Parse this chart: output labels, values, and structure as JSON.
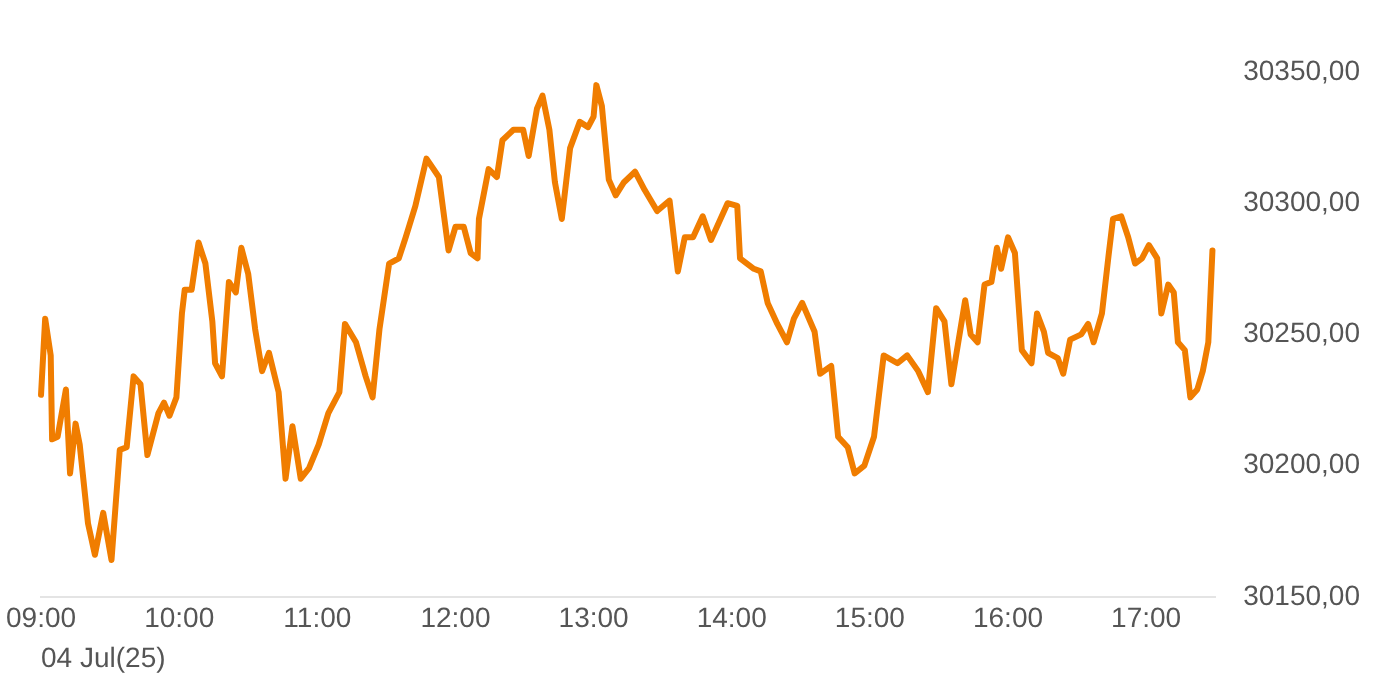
{
  "chart_data": {
    "type": "line",
    "xlabel": "04 Jul(25)",
    "x": [
      9.0,
      9.03,
      9.07,
      9.08,
      9.12,
      9.18,
      9.21,
      9.25,
      9.28,
      9.34,
      9.39,
      9.45,
      9.51,
      9.57,
      9.62,
      9.67,
      9.72,
      9.77,
      9.85,
      9.89,
      9.93,
      9.98,
      10.02,
      10.04,
      10.09,
      10.14,
      10.19,
      10.24,
      10.26,
      10.31,
      10.36,
      10.41,
      10.45,
      10.5,
      10.55,
      10.6,
      10.65,
      10.72,
      10.77,
      10.82,
      10.88,
      10.94,
      11.01,
      11.08,
      11.16,
      11.2,
      11.28,
      11.35,
      11.4,
      11.45,
      11.52,
      11.59,
      11.64,
      11.71,
      11.79,
      11.88,
      11.95,
      12.0,
      12.06,
      12.11,
      12.16,
      12.17,
      12.24,
      12.3,
      12.34,
      12.42,
      12.49,
      12.53,
      12.59,
      12.63,
      12.68,
      12.72,
      12.77,
      12.83,
      12.9,
      12.96,
      13.0,
      13.02,
      13.06,
      13.11,
      13.16,
      13.22,
      13.3,
      13.37,
      13.46,
      13.55,
      13.61,
      13.66,
      13.72,
      13.79,
      13.85,
      13.97,
      14.04,
      14.06,
      14.16,
      14.21,
      14.26,
      14.33,
      14.4,
      14.45,
      14.51,
      14.6,
      14.64,
      14.72,
      14.77,
      14.84,
      14.89,
      14.96,
      15.03,
      15.1,
      15.2,
      15.27,
      15.35,
      15.42,
      15.48,
      15.54,
      15.59,
      15.69,
      15.73,
      15.78,
      15.83,
      15.88,
      15.92,
      15.95,
      16.0,
      16.05,
      16.1,
      16.17,
      16.21,
      16.26,
      16.29,
      16.36,
      16.4,
      16.45,
      16.53,
      16.58,
      16.62,
      16.68,
      16.73,
      16.76,
      16.82,
      16.87,
      16.92,
      16.97,
      17.02,
      17.08,
      17.11,
      17.16,
      17.2,
      17.23,
      17.28,
      17.32,
      17.37,
      17.41,
      17.45,
      17.48
    ],
    "series": [
      {
        "color": "#f07d00",
        "values": [
          30227,
          30256,
          30242,
          30210,
          30211,
          30229,
          30197,
          30216,
          30208,
          30178,
          30166,
          30182,
          30164,
          30206,
          30207,
          30234,
          30231,
          30204,
          30220,
          30224,
          30219,
          30226,
          30258,
          30267,
          30267,
          30285,
          30277,
          30255,
          30239,
          30234,
          30270,
          30266,
          30283,
          30273,
          30252,
          30236,
          30243,
          30228,
          30195,
          30215,
          30195,
          30199,
          30208,
          30220,
          30228,
          30254,
          30247,
          30234,
          30226,
          30252,
          30277,
          30279,
          30287,
          30299,
          30317,
          30310,
          30282,
          30291,
          30291,
          30281,
          30279,
          30294,
          30313,
          30310,
          30324,
          30328,
          30328,
          30318,
          30336,
          30341,
          30328,
          30308,
          30294,
          30321,
          30331,
          30329,
          30333,
          30345,
          30337,
          30309,
          30303,
          30308,
          30312,
          30305,
          30297,
          30301,
          30274,
          30287,
          30287,
          30295,
          30286,
          30300,
          30299,
          30279,
          30275,
          30274,
          30262,
          30254,
          30247,
          30256,
          30262,
          30251,
          30235,
          30238,
          30211,
          30207,
          30197,
          30200,
          30211,
          30242,
          30239,
          30242,
          30236,
          30228,
          30260,
          30255,
          30231,
          30263,
          30250,
          30247,
          30269,
          30270,
          30283,
          30275,
          30287,
          30281,
          30244,
          30239,
          30258,
          30251,
          30243,
          30241,
          30235,
          30248,
          30250,
          30254,
          30247,
          30258,
          30281,
          30294,
          30295,
          30287,
          30277,
          30279,
          30284,
          30279,
          30258,
          30269,
          30266,
          30247,
          30244,
          30226,
          30229,
          30236,
          30247,
          30282
        ]
      }
    ],
    "xticks": [
      {
        "value": 9,
        "label": "09:00"
      },
      {
        "value": 10,
        "label": "10:00"
      },
      {
        "value": 11,
        "label": "11:00"
      },
      {
        "value": 12,
        "label": "12:00"
      },
      {
        "value": 13,
        "label": "13:00"
      },
      {
        "value": 14,
        "label": "14:00"
      },
      {
        "value": 15,
        "label": "15:00"
      },
      {
        "value": 16,
        "label": "16:00"
      },
      {
        "value": 17,
        "label": "17:00"
      }
    ],
    "xlim": [
      9,
      17.5
    ],
    "ylim": [
      30150,
      30350
    ],
    "yticks": [
      {
        "value": 30150,
        "label": "30150,00"
      },
      {
        "value": 30200,
        "label": "30200,00"
      },
      {
        "value": 30250,
        "label": "30250,00"
      },
      {
        "value": 30300,
        "label": "30300,00"
      },
      {
        "value": 30350,
        "label": "30350,00"
      }
    ],
    "grid": false,
    "legend": false,
    "marker": "none",
    "line_style": "solid"
  }
}
